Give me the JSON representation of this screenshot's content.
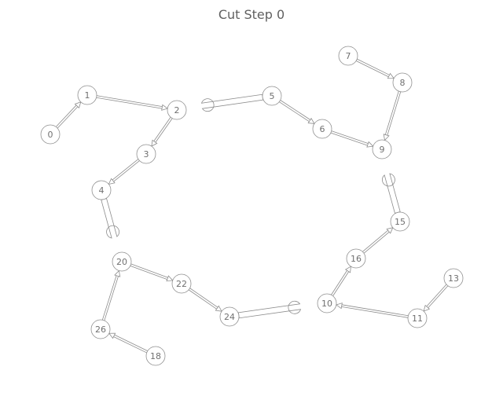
{
  "title": "Cut Step 0",
  "nodes": [
    {
      "id": "0"
    },
    {
      "id": "1"
    },
    {
      "id": "2"
    },
    {
      "id": "3"
    },
    {
      "id": "4"
    },
    {
      "id": "5"
    },
    {
      "id": "6"
    },
    {
      "id": "7"
    },
    {
      "id": "8"
    },
    {
      "id": "9"
    },
    {
      "id": "10"
    },
    {
      "id": "11"
    },
    {
      "id": "13"
    },
    {
      "id": "15"
    },
    {
      "id": "16"
    },
    {
      "id": "18"
    },
    {
      "id": "20"
    },
    {
      "id": "22"
    },
    {
      "id": "24"
    },
    {
      "id": "26"
    }
  ],
  "edges": [
    {
      "from": "0",
      "to": "1"
    },
    {
      "from": "1",
      "to": "2"
    },
    {
      "from": "2",
      "to": "3"
    },
    {
      "from": "3",
      "to": "4"
    },
    {
      "from": "5",
      "to": "6"
    },
    {
      "from": "6",
      "to": "9"
    },
    {
      "from": "7",
      "to": "8"
    },
    {
      "from": "8",
      "to": "9"
    },
    {
      "from": "11",
      "to": "10"
    },
    {
      "from": "13",
      "to": "11"
    },
    {
      "from": "10",
      "to": "16"
    },
    {
      "from": "16",
      "to": "15"
    },
    {
      "from": "20",
      "to": "22"
    },
    {
      "from": "22",
      "to": "24"
    },
    {
      "from": "26",
      "to": "20"
    },
    {
      "from": "18",
      "to": "26"
    }
  ],
  "cut_stubs": [
    {
      "node": "4"
    },
    {
      "node": "5"
    },
    {
      "node": "15"
    },
    {
      "node": "24"
    }
  ]
}
